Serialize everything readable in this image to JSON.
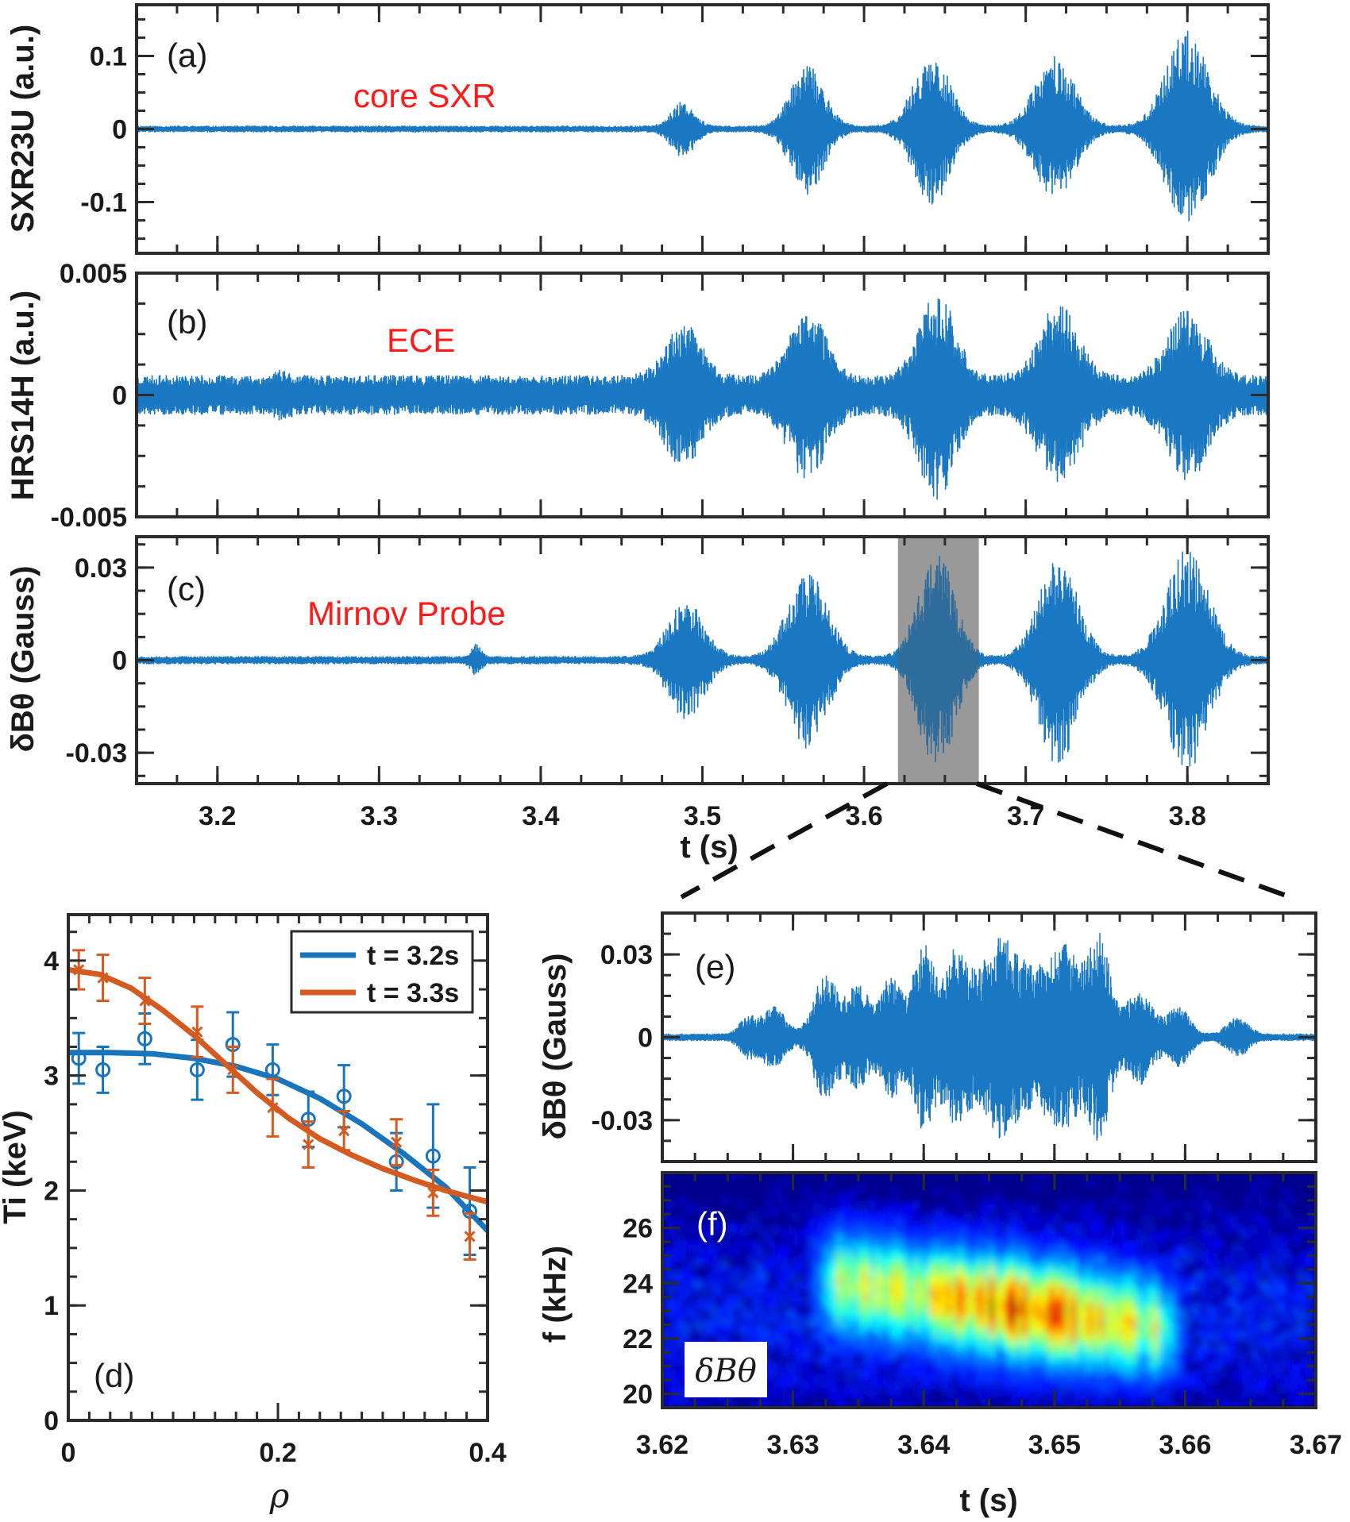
{
  "colors": {
    "signal": "#1a78c2",
    "blue": "#1874bd",
    "orange": "#d45a1f",
    "annotation": "#ff1a1a",
    "highlight": "#a8a8a8"
  },
  "top_axis": {
    "xlabel": "t (s)",
    "xticks": [
      "3.2",
      "3.3",
      "3.4",
      "3.5",
      "3.6",
      "3.7",
      "3.8"
    ]
  },
  "chart_data": [
    {
      "id": "a",
      "type": "line",
      "panel_tag": "(a)",
      "annotation": "core SXR",
      "ylabel": "SXR23U (a.u.)",
      "yticks": [
        "0.1",
        "0",
        "-0.1"
      ],
      "ytick_values": [
        0.1,
        0,
        -0.1
      ],
      "ylim": [
        -0.17,
        0.17
      ],
      "xlim": [
        3.15,
        3.85
      ],
      "noise": 0.004,
      "bursts": [
        {
          "center": 3.488,
          "width": 0.007,
          "amp": 0.035
        },
        {
          "center": 3.565,
          "width": 0.01,
          "amp": 0.085
        },
        {
          "center": 3.642,
          "width": 0.011,
          "amp": 0.1
        },
        {
          "center": 3.718,
          "width": 0.012,
          "amp": 0.095
        },
        {
          "center": 3.8,
          "width": 0.013,
          "amp": 0.13
        }
      ]
    },
    {
      "id": "b",
      "type": "line",
      "panel_tag": "(b)",
      "annotation": "ECE",
      "ylabel": "HRS14H (a.u.)",
      "yticks": [
        "0.005",
        "0",
        "-0.005"
      ],
      "ytick_values": [
        0.005,
        0,
        -0.005
      ],
      "ylim": [
        -0.005,
        0.005
      ],
      "xlim": [
        3.15,
        3.85
      ],
      "noise": 0.0008,
      "bursts": [
        {
          "center": 3.24,
          "width": 0.004,
          "amp": 0.0003
        },
        {
          "center": 3.488,
          "width": 0.011,
          "amp": 0.0022
        },
        {
          "center": 3.565,
          "width": 0.011,
          "amp": 0.0028
        },
        {
          "center": 3.645,
          "width": 0.011,
          "amp": 0.0035
        },
        {
          "center": 3.72,
          "width": 0.012,
          "amp": 0.003
        },
        {
          "center": 3.8,
          "width": 0.012,
          "amp": 0.0028
        }
      ]
    },
    {
      "id": "c",
      "type": "line",
      "panel_tag": "(c)",
      "annotation": "Mirnov Probe",
      "ylabel": "δBθ (Gauss)",
      "yticks": [
        "0.03",
        "0",
        "-0.03"
      ],
      "ytick_values": [
        0.03,
        0,
        -0.03
      ],
      "ylim": [
        -0.04,
        0.04
      ],
      "xlim": [
        3.15,
        3.85
      ],
      "noise": 0.0012,
      "highlight": [
        3.621,
        3.671
      ],
      "bursts": [
        {
          "center": 3.36,
          "width": 0.003,
          "amp": 0.004
        },
        {
          "center": 3.49,
          "width": 0.011,
          "amp": 0.018
        },
        {
          "center": 3.565,
          "width": 0.012,
          "amp": 0.028
        },
        {
          "center": 3.645,
          "width": 0.011,
          "amp": 0.035
        },
        {
          "center": 3.72,
          "width": 0.012,
          "amp": 0.033
        },
        {
          "center": 3.8,
          "width": 0.013,
          "amp": 0.035
        }
      ]
    },
    {
      "id": "d",
      "type": "line",
      "panel_tag": "(d)",
      "xlabel": "ρ",
      "ylabel": "Ti (keV)",
      "xlim": [
        0,
        0.4
      ],
      "ylim": [
        0,
        4.4
      ],
      "xticks": [
        "0",
        "0.2",
        "0.4"
      ],
      "xtick_values": [
        0,
        0.2,
        0.4
      ],
      "yticks": [
        "0",
        "1",
        "2",
        "3",
        "4"
      ],
      "ytick_values": [
        0,
        1,
        2,
        3,
        4
      ],
      "legend": [
        "t = 3.2s",
        "t = 3.3s"
      ],
      "series": [
        {
          "name": "t = 3.2s",
          "color": "blue",
          "marker": "o",
          "points": [
            {
              "x": 0.01,
              "y": 3.15,
              "err": 0.22
            },
            {
              "x": 0.033,
              "y": 3.05,
              "err": 0.2
            },
            {
              "x": 0.073,
              "y": 3.32,
              "err": 0.22
            },
            {
              "x": 0.123,
              "y": 3.05,
              "err": 0.26
            },
            {
              "x": 0.157,
              "y": 3.27,
              "err": 0.28
            },
            {
              "x": 0.195,
              "y": 3.05,
              "err": 0.22
            },
            {
              "x": 0.229,
              "y": 2.62,
              "err": 0.24
            },
            {
              "x": 0.263,
              "y": 2.82,
              "err": 0.27
            },
            {
              "x": 0.313,
              "y": 2.25,
              "err": 0.25
            },
            {
              "x": 0.348,
              "y": 2.3,
              "err": 0.45
            },
            {
              "x": 0.383,
              "y": 1.82,
              "err": 0.38
            }
          ],
          "fit": [
            [
              0,
              3.2
            ],
            [
              0.04,
              3.2
            ],
            [
              0.08,
              3.19
            ],
            [
              0.12,
              3.15
            ],
            [
              0.16,
              3.08
            ],
            [
              0.2,
              2.97
            ],
            [
              0.24,
              2.8
            ],
            [
              0.28,
              2.58
            ],
            [
              0.32,
              2.32
            ],
            [
              0.36,
              2.03
            ],
            [
              0.4,
              1.65
            ]
          ]
        },
        {
          "name": "t = 3.3s",
          "color": "orange",
          "marker": "x",
          "points": [
            {
              "x": 0.01,
              "y": 3.92,
              "err": 0.17
            },
            {
              "x": 0.033,
              "y": 3.85,
              "err": 0.2
            },
            {
              "x": 0.073,
              "y": 3.65,
              "err": 0.2
            },
            {
              "x": 0.123,
              "y": 3.38,
              "err": 0.22
            },
            {
              "x": 0.157,
              "y": 3.05,
              "err": 0.2
            },
            {
              "x": 0.195,
              "y": 2.72,
              "err": 0.25
            },
            {
              "x": 0.229,
              "y": 2.4,
              "err": 0.2
            },
            {
              "x": 0.263,
              "y": 2.52,
              "err": 0.17
            },
            {
              "x": 0.313,
              "y": 2.42,
              "err": 0.2
            },
            {
              "x": 0.348,
              "y": 1.98,
              "err": 0.2
            },
            {
              "x": 0.383,
              "y": 1.6,
              "err": 0.2
            }
          ],
          "fit": [
            [
              0,
              3.92
            ],
            [
              0.03,
              3.88
            ],
            [
              0.06,
              3.76
            ],
            [
              0.09,
              3.57
            ],
            [
              0.12,
              3.35
            ],
            [
              0.15,
              3.1
            ],
            [
              0.18,
              2.85
            ],
            [
              0.21,
              2.63
            ],
            [
              0.24,
              2.45
            ],
            [
              0.27,
              2.31
            ],
            [
              0.3,
              2.19
            ],
            [
              0.33,
              2.09
            ],
            [
              0.36,
              2.0
            ],
            [
              0.4,
              1.9
            ]
          ]
        }
      ]
    },
    {
      "id": "e",
      "type": "line",
      "panel_tag": "(e)",
      "ylabel": "δBθ (Gauss)",
      "yticks": [
        "0.03",
        "0",
        "-0.03"
      ],
      "ytick_values": [
        0.03,
        0,
        -0.03
      ],
      "ylim": [
        -0.045,
        0.045
      ],
      "xlim": [
        3.62,
        3.67
      ],
      "noise": 0.0012,
      "bursts": [
        {
          "center": 3.6265,
          "width": 0.0006,
          "amp": 0.006
        },
        {
          "center": 3.6285,
          "width": 0.0009,
          "amp": 0.01
        },
        {
          "center": 3.6325,
          "width": 0.0009,
          "amp": 0.022
        },
        {
          "center": 3.635,
          "width": 0.0008,
          "amp": 0.018
        },
        {
          "center": 3.6375,
          "width": 0.0008,
          "amp": 0.021
        },
        {
          "center": 3.64,
          "width": 0.0008,
          "amp": 0.032
        },
        {
          "center": 3.6425,
          "width": 0.001,
          "amp": 0.03
        },
        {
          "center": 3.6455,
          "width": 0.0012,
          "amp": 0.024
        },
        {
          "center": 3.648,
          "width": 0.002,
          "amp": 0.022
        },
        {
          "center": 3.651,
          "width": 0.0012,
          "amp": 0.025
        },
        {
          "center": 3.6535,
          "width": 0.0008,
          "amp": 0.033
        },
        {
          "center": 3.6565,
          "width": 0.001,
          "amp": 0.016
        },
        {
          "center": 3.6595,
          "width": 0.0008,
          "amp": 0.01
        },
        {
          "center": 3.664,
          "width": 0.0008,
          "amp": 0.006
        }
      ]
    },
    {
      "id": "f",
      "type": "heatmap",
      "panel_tag": "(f)",
      "inset_label": "δBθ",
      "xlabel": "t (s)",
      "ylabel": "f (kHz)",
      "xlim": [
        3.62,
        3.67
      ],
      "ylim": [
        19.5,
        28
      ],
      "xticks": [
        "3.62",
        "3.63",
        "3.64",
        "3.65",
        "3.66",
        "3.67"
      ],
      "xtick_values": [
        3.62,
        3.63,
        3.64,
        3.65,
        3.66,
        3.67
      ],
      "yticks": [
        "20",
        "22",
        "24",
        "26"
      ],
      "ytick_values": [
        20,
        22,
        24,
        26
      ],
      "colormap": "jet",
      "mode_freq_start": 24.2,
      "mode_freq_end": 22.3,
      "active_window": [
        3.632,
        3.659
      ],
      "peak_window": [
        3.64,
        3.655
      ]
    }
  ]
}
